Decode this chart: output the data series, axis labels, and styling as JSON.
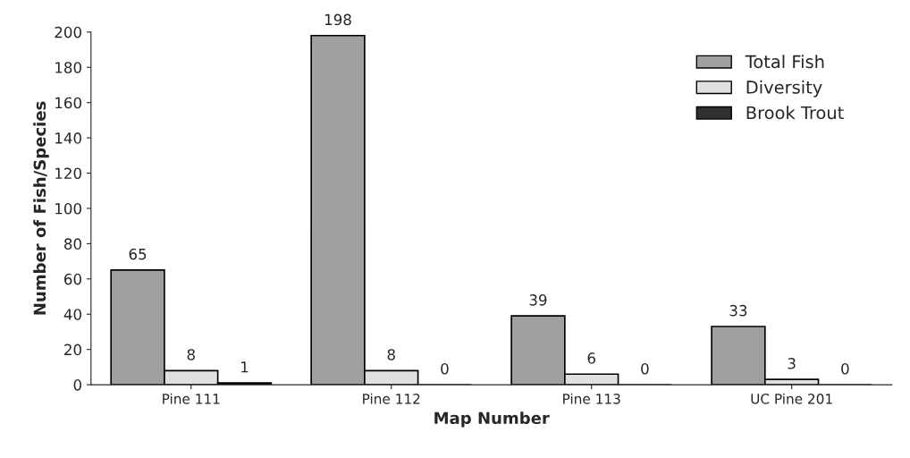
{
  "chart_data": {
    "type": "bar",
    "xlabel": "Map Number",
    "ylabel": "Number of Fish/Species",
    "categories": [
      "Pine 111",
      "Pine 112",
      "Pine 113",
      "UC Pine 201"
    ],
    "series": [
      {
        "name": "Total Fish",
        "color": "#a0a0a0",
        "values": [
          65,
          198,
          39,
          33
        ]
      },
      {
        "name": "Diversity",
        "color": "#e0e0e0",
        "values": [
          8,
          8,
          6,
          3
        ]
      },
      {
        "name": "Brook Trout",
        "color": "#303030",
        "values": [
          1,
          0,
          0,
          0
        ]
      }
    ],
    "ylim": [
      0,
      200
    ],
    "yticks": [
      0,
      20,
      40,
      60,
      80,
      100,
      120,
      140,
      160,
      180,
      200
    ],
    "data_labels": true,
    "grid": false,
    "legend": "top right"
  }
}
